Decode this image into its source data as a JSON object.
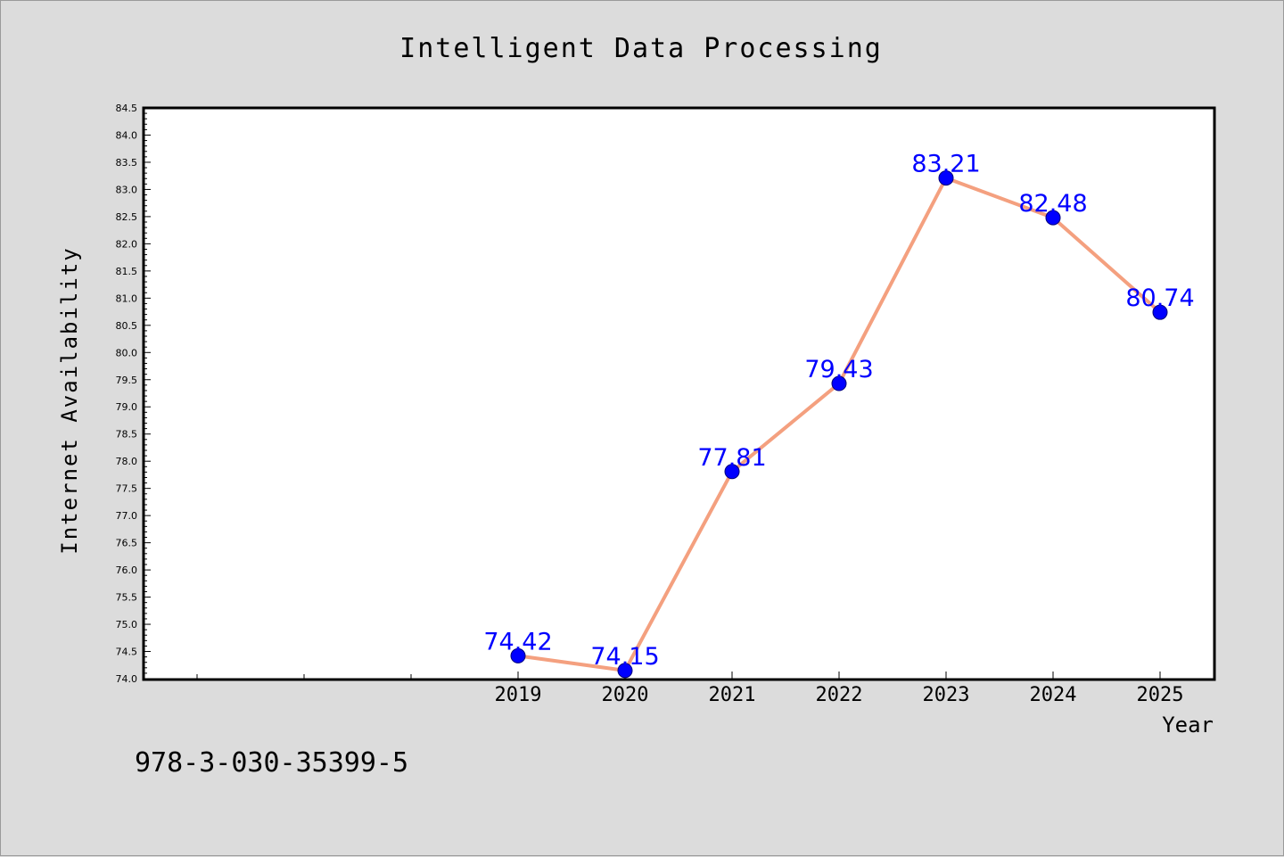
{
  "colors": {
    "background": "#dcdcdc",
    "plot_background": "#ffffff",
    "line": "#f4a07f",
    "marker": "#0000ff",
    "data_label": "#0000ff",
    "text": "#000000"
  },
  "chart_data": {
    "type": "line",
    "title": "Intelligent Data Processing",
    "xlabel": "Year",
    "ylabel": "Internet Availability",
    "categories": [
      "2019",
      "2020",
      "2021",
      "2022",
      "2023",
      "2024",
      "2025"
    ],
    "series": [
      {
        "values": [
          74.42,
          74.15,
          77.81,
          79.43,
          83.21,
          82.48,
          80.74
        ],
        "labels": [
          "74.42",
          "74.15",
          "77.81",
          "79.43",
          "83.21",
          "82.48",
          "80.74"
        ]
      }
    ],
    "ylim": [
      74.0,
      84.5
    ],
    "ytick_labels": [
      "74.0",
      "74.5",
      "75.0",
      "75.5",
      "76.0",
      "76.5",
      "77.0",
      "77.5",
      "78.0",
      "78.5",
      "79.0",
      "79.5",
      "80.0",
      "80.5",
      "81.0",
      "81.5",
      "82.0",
      "82.5",
      "83.0",
      "83.5",
      "84.0",
      "84.5"
    ],
    "grid": false,
    "legend": "none"
  },
  "footer": {
    "isbn": "978-3-030-35399-5"
  }
}
